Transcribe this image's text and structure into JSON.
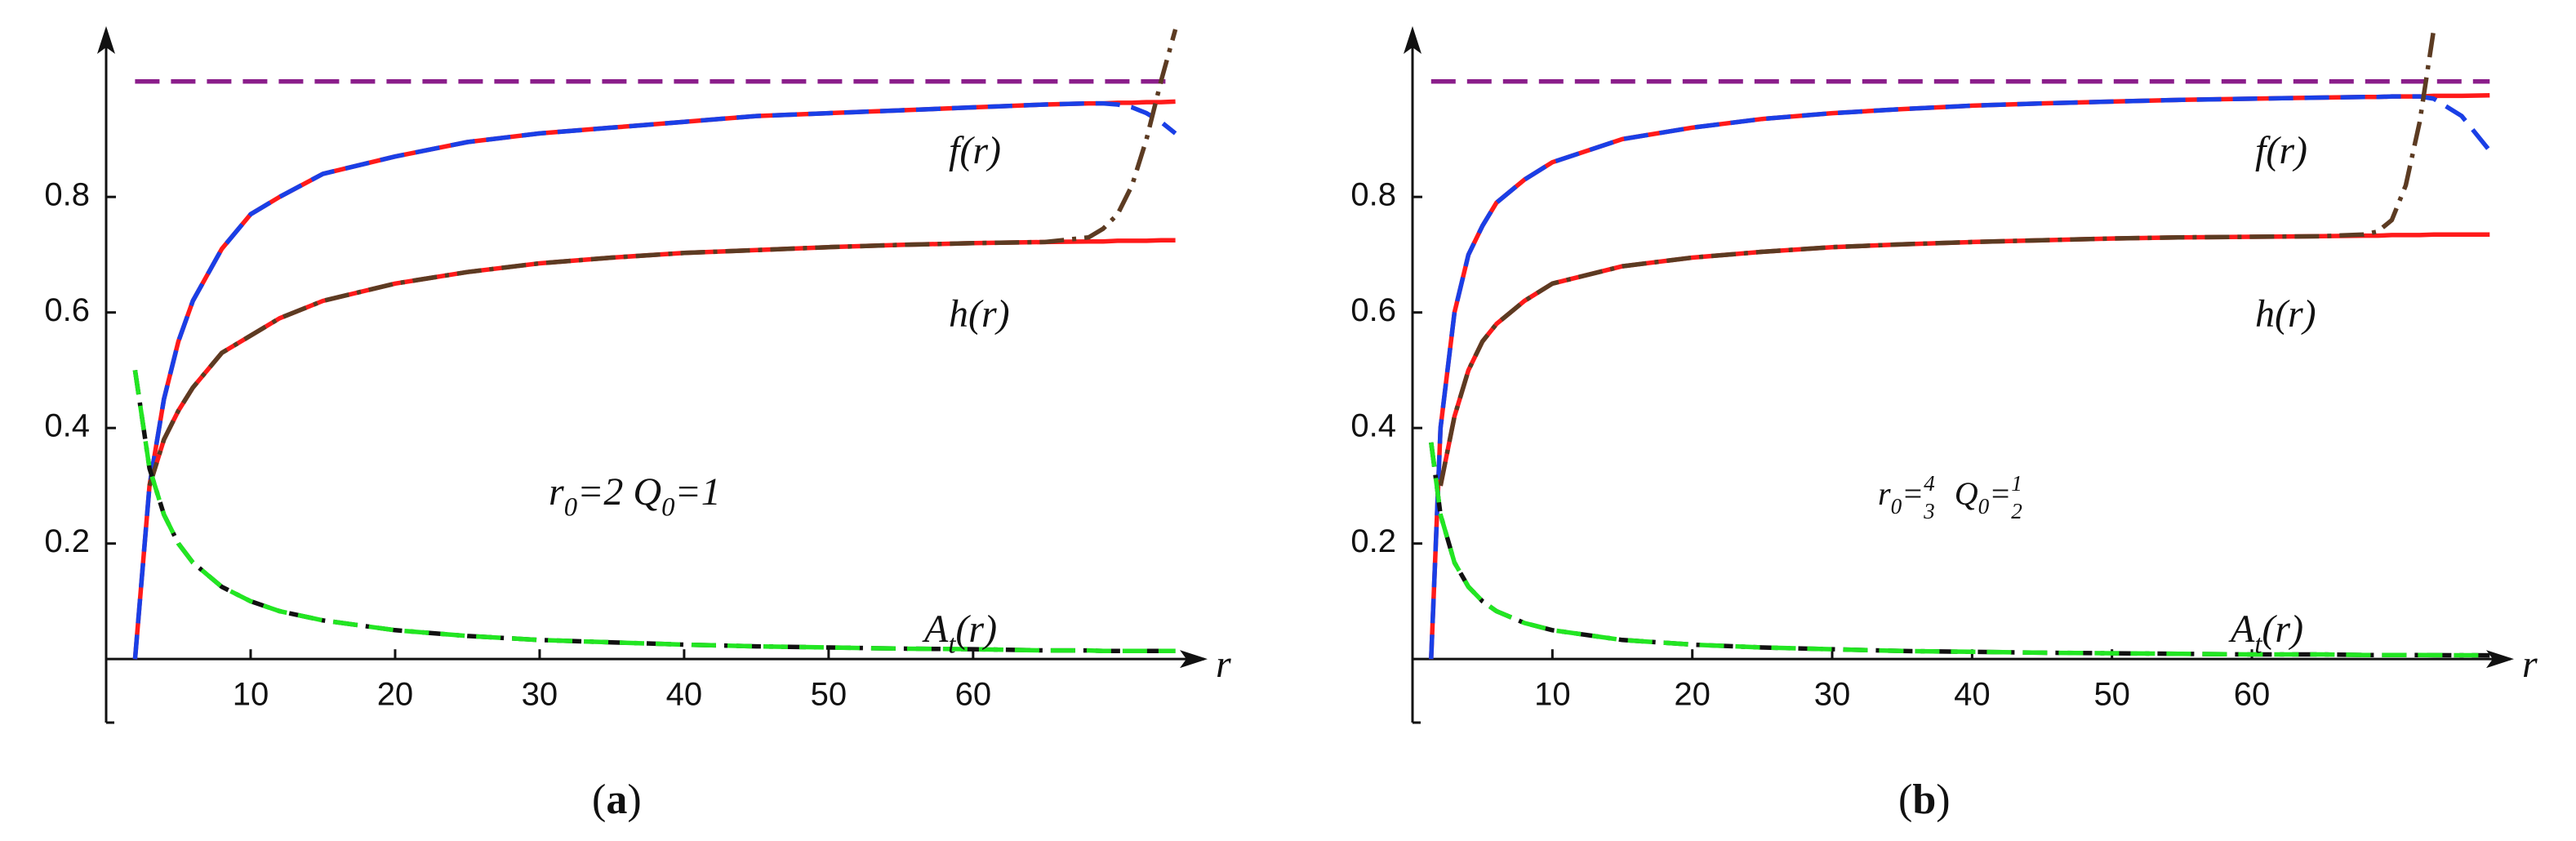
{
  "chart_data": [
    {
      "type": "line",
      "x": [
        2,
        3,
        4,
        5,
        6,
        8,
        10,
        12,
        15,
        20,
        25,
        30,
        35,
        40,
        45,
        50,
        55,
        60,
        65,
        68,
        69,
        70,
        71,
        72,
        73,
        74
      ],
      "xlim": [
        0,
        76
      ],
      "ylim": [
        -0.11,
        1.09
      ],
      "xticks": [
        10,
        20,
        30,
        40,
        50,
        60
      ],
      "yticks": [
        0.2,
        0.4,
        0.6,
        0.8
      ],
      "x_label": "r",
      "series": [
        {
          "color": "#8b1e8b",
          "dash": "dashed",
          "values": [
            1,
            1,
            1,
            1,
            1,
            1,
            1,
            1,
            1,
            1,
            1,
            1,
            1,
            1,
            1,
            1,
            1,
            1,
            1,
            1,
            1,
            1,
            1,
            1,
            1,
            1
          ]
        },
        {
          "color": "#ff1a1a",
          "dash": "solid",
          "values": [
            0,
            0.3,
            0.45,
            0.55,
            0.62,
            0.71,
            0.77,
            0.8,
            0.84,
            0.87,
            0.895,
            0.91,
            0.92,
            0.93,
            0.94,
            0.945,
            0.95,
            0.955,
            0.96,
            0.962,
            0.962,
            0.963,
            0.963,
            0.964,
            0.964,
            0.965
          ]
        },
        {
          "color": "#1a3fe6",
          "dash": "dashed",
          "values": [
            0,
            0.3,
            0.45,
            0.55,
            0.62,
            0.71,
            0.77,
            0.8,
            0.84,
            0.87,
            0.895,
            0.91,
            0.92,
            0.93,
            0.94,
            0.945,
            0.95,
            0.955,
            0.96,
            0.962,
            0.962,
            0.96,
            0.955,
            0.945,
            0.93,
            0.91
          ]
        },
        {
          "color": "#ff1a1a",
          "dash": "solid",
          "values": [
            null,
            0.3,
            0.38,
            0.43,
            0.47,
            0.53,
            0.56,
            0.59,
            0.62,
            0.65,
            0.67,
            0.685,
            0.695,
            0.703,
            0.708,
            0.713,
            0.717,
            0.72,
            0.722,
            0.723,
            0.723,
            0.724,
            0.724,
            0.724,
            0.725,
            0.725
          ]
        },
        {
          "color": "#5c3b22",
          "dash": "dashdot",
          "values": [
            null,
            0.3,
            0.38,
            0.43,
            0.47,
            0.53,
            0.56,
            0.59,
            0.62,
            0.65,
            0.67,
            0.685,
            0.695,
            0.703,
            0.708,
            0.713,
            0.717,
            0.72,
            0.722,
            0.73,
            0.745,
            0.77,
            0.82,
            0.9,
            1.0,
            1.09
          ]
        },
        {
          "color": "#111111",
          "dash": "dashdot",
          "values": [
            0.5,
            0.33,
            0.25,
            0.2,
            0.167,
            0.125,
            0.1,
            0.083,
            0.067,
            0.05,
            0.04,
            0.033,
            0.029,
            0.025,
            0.022,
            0.02,
            0.018,
            0.017,
            0.015,
            0.015,
            0.014,
            0.014,
            0.014,
            0.014,
            0.014,
            0.014
          ]
        },
        {
          "color": "#22e622",
          "dash": "dashed",
          "values": [
            0.5,
            0.33,
            0.25,
            0.2,
            0.167,
            0.125,
            0.1,
            0.083,
            0.067,
            0.05,
            0.04,
            0.033,
            0.029,
            0.025,
            0.022,
            0.02,
            0.018,
            0.017,
            0.015,
            0.015,
            0.014,
            0.014,
            0.014,
            0.014,
            0.014,
            0.014
          ]
        }
      ],
      "labels": [
        {
          "segments": [
            {
              "text": "f(r)",
              "style": "base"
            }
          ]
        },
        {
          "segments": [
            {
              "text": "h(r)",
              "style": "base"
            }
          ]
        },
        {
          "segments": [
            {
              "text": "A",
              "style": "base"
            },
            {
              "text": "t",
              "style": "sub"
            },
            {
              "text": "(r)",
              "style": "base"
            }
          ]
        }
      ],
      "annotation": {
        "segments": [
          {
            "text": "r",
            "style": "base"
          },
          {
            "text": "0",
            "style": "sub"
          },
          {
            "text": "=2 Q",
            "style": "base"
          },
          {
            "text": "0",
            "style": "sub"
          },
          {
            "text": "=1",
            "style": "base"
          }
        ]
      },
      "caption": {
        "segments": [
          {
            "text": "(",
            "style": "plain"
          },
          {
            "text": "a",
            "style": "bold"
          },
          {
            "text": ")",
            "style": "plain"
          }
        ]
      }
    },
    {
      "type": "line",
      "x": [
        1.33,
        2,
        3,
        4,
        5,
        6,
        8,
        10,
        15,
        20,
        25,
        30,
        35,
        40,
        45,
        50,
        55,
        60,
        65,
        68,
        69,
        70,
        71,
        72,
        73,
        75,
        77
      ],
      "xlim": [
        0,
        78.5
      ],
      "ylim": [
        -0.11,
        1.09
      ],
      "xticks": [
        10,
        20,
        30,
        40,
        50,
        60
      ],
      "yticks": [
        0.2,
        0.4,
        0.6,
        0.8
      ],
      "x_label": "r",
      "series": [
        {
          "color": "#8b1e8b",
          "dash": "dashed",
          "values": [
            1,
            1,
            1,
            1,
            1,
            1,
            1,
            1,
            1,
            1,
            1,
            1,
            1,
            1,
            1,
            1,
            1,
            1,
            1,
            1,
            1,
            1,
            1,
            1,
            1,
            1,
            1
          ]
        },
        {
          "color": "#ff1a1a",
          "dash": "solid",
          "values": [
            0,
            0.4,
            0.6,
            0.7,
            0.75,
            0.79,
            0.83,
            0.86,
            0.9,
            0.92,
            0.935,
            0.945,
            0.952,
            0.958,
            0.962,
            0.965,
            0.968,
            0.97,
            0.972,
            0.973,
            0.973,
            0.974,
            0.974,
            0.974,
            0.975,
            0.975,
            0.976
          ]
        },
        {
          "color": "#1a3fe6",
          "dash": "dashed",
          "values": [
            0,
            0.4,
            0.6,
            0.7,
            0.75,
            0.79,
            0.83,
            0.86,
            0.9,
            0.92,
            0.935,
            0.945,
            0.952,
            0.958,
            0.962,
            0.965,
            0.968,
            0.97,
            0.972,
            0.973,
            0.973,
            0.974,
            0.974,
            0.974,
            0.97,
            0.94,
            0.88
          ]
        },
        {
          "color": "#ff1a1a",
          "dash": "solid",
          "values": [
            null,
            0.3,
            0.42,
            0.5,
            0.55,
            0.58,
            0.62,
            0.65,
            0.68,
            0.695,
            0.705,
            0.713,
            0.718,
            0.722,
            0.725,
            0.728,
            0.73,
            0.731,
            0.732,
            0.733,
            0.733,
            0.734,
            0.734,
            0.734,
            0.735,
            0.735,
            0.735
          ]
        },
        {
          "color": "#5c3b22",
          "dash": "dashdot",
          "values": [
            null,
            0.3,
            0.42,
            0.5,
            0.55,
            0.58,
            0.62,
            0.65,
            0.68,
            0.695,
            0.705,
            0.713,
            0.718,
            0.722,
            0.725,
            0.728,
            0.73,
            0.731,
            0.732,
            0.735,
            0.74,
            0.76,
            0.82,
            0.93,
            1.09,
            null,
            null
          ]
        },
        {
          "color": "#111111",
          "dash": "dashdot",
          "values": [
            0.375,
            0.25,
            0.167,
            0.125,
            0.1,
            0.083,
            0.0625,
            0.05,
            0.033,
            0.025,
            0.02,
            0.017,
            0.014,
            0.0125,
            0.011,
            0.01,
            0.009,
            0.008,
            0.008,
            0.007,
            0.007,
            0.007,
            0.007,
            0.007,
            0.0068,
            0.0066,
            0.0065
          ]
        },
        {
          "color": "#22e622",
          "dash": "dashed",
          "values": [
            0.375,
            0.25,
            0.167,
            0.125,
            0.1,
            0.083,
            0.0625,
            0.05,
            0.033,
            0.025,
            0.02,
            0.017,
            0.014,
            0.0125,
            0.011,
            0.01,
            0.009,
            0.008,
            0.008,
            0.007,
            0.007,
            0.007,
            0.007,
            0.007,
            0.0068,
            0.0066,
            0.0065
          ]
        }
      ],
      "labels": [
        {
          "segments": [
            {
              "text": "f(r)",
              "style": "base"
            }
          ]
        },
        {
          "segments": [
            {
              "text": "h(r)",
              "style": "base"
            }
          ]
        },
        {
          "segments": [
            {
              "text": "A",
              "style": "base"
            },
            {
              "text": "t",
              "style": "sub"
            },
            {
              "text": "(r)",
              "style": "base"
            }
          ]
        }
      ],
      "annotation": {
        "segments": [
          {
            "text": "r",
            "style": "base"
          },
          {
            "text": "0",
            "style": "sub"
          },
          {
            "text": "=",
            "style": "base"
          },
          {
            "text": "4",
            "style": "num"
          },
          {
            "text": "3",
            "style": "den"
          },
          {
            "text": "  Q",
            "style": "base"
          },
          {
            "text": "0",
            "style": "sub"
          },
          {
            "text": "=",
            "style": "base"
          },
          {
            "text": "1",
            "style": "num"
          },
          {
            "text": "2",
            "style": "den"
          }
        ]
      },
      "caption": {
        "segments": [
          {
            "text": "(",
            "style": "plain"
          },
          {
            "text": "b",
            "style": "bold"
          },
          {
            "text": ")",
            "style": "plain"
          }
        ]
      }
    }
  ]
}
